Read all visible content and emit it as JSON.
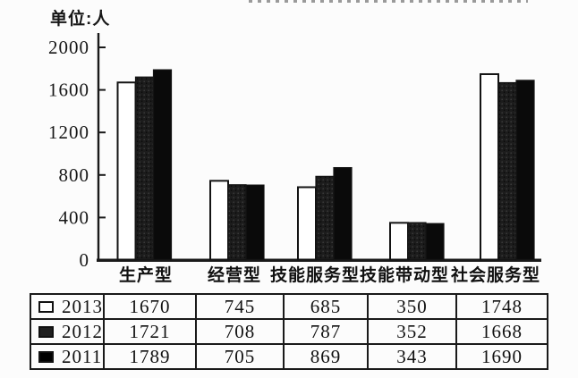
{
  "page": {
    "background": "#fcfcfc",
    "ink": "#1a1a1a"
  },
  "chart": {
    "unit_label": "单位:人"
  },
  "chart_data": {
    "type": "bar",
    "title": "",
    "ylabel": "单位:人",
    "xlabel": "",
    "ylim": [
      0,
      2000
    ],
    "yticks": [
      0,
      400,
      800,
      1200,
      1600,
      2000
    ],
    "grid": false,
    "legend_position": "table-below",
    "categories": [
      "生产型",
      "经营型",
      "技能服务型",
      "技能带动型",
      "社会服务型"
    ],
    "series": [
      {
        "name": "2013",
        "values": [
          1670,
          745,
          685,
          350,
          1748
        ],
        "fill": "#ffffff",
        "swatch": "#ffffff"
      },
      {
        "name": "2012",
        "values": [
          1721,
          708,
          787,
          352,
          1668
        ],
        "fill": "#1f1f1f",
        "swatch": "#1f1f1f"
      },
      {
        "name": "2011",
        "values": [
          1789,
          705,
          869,
          343,
          1690
        ],
        "fill": "#0a0a0a",
        "swatch": "#000000"
      }
    ]
  }
}
